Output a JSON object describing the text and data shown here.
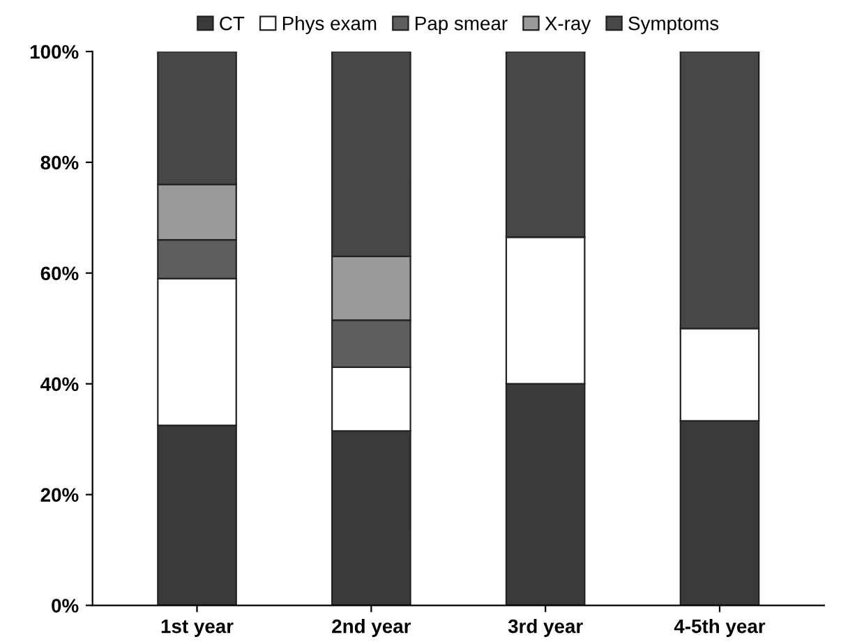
{
  "chart_data": {
    "type": "bar",
    "stacked": true,
    "categories": [
      "1st year",
      "2nd year",
      "3rd year",
      "4-5th year"
    ],
    "series": [
      {
        "name": "CT",
        "color": "#3a3a3a",
        "values": [
          32.5,
          31.5,
          40,
          33.3
        ]
      },
      {
        "name": "Phys exam",
        "color": "#ffffff",
        "values": [
          26.5,
          11.5,
          26.5,
          16.7
        ]
      },
      {
        "name": "Pap smear",
        "color": "#5e5e5e",
        "values": [
          7,
          8.5,
          0,
          0
        ]
      },
      {
        "name": "X-ray",
        "color": "#9a9a9a",
        "values": [
          10,
          11.5,
          0,
          0
        ]
      },
      {
        "name": "Symptoms",
        "color": "#474747",
        "values": [
          24,
          37,
          33.5,
          50
        ]
      }
    ],
    "ylim": [
      0,
      100
    ],
    "yticks": [
      {
        "value": 0,
        "label": "0%"
      },
      {
        "value": 20,
        "label": "20%"
      },
      {
        "value": 40,
        "label": "40%"
      },
      {
        "value": 60,
        "label": "60%"
      },
      {
        "value": 80,
        "label": "80%"
      },
      {
        "value": 100,
        "label": "100%"
      }
    ],
    "grid": false,
    "legend": "top"
  }
}
